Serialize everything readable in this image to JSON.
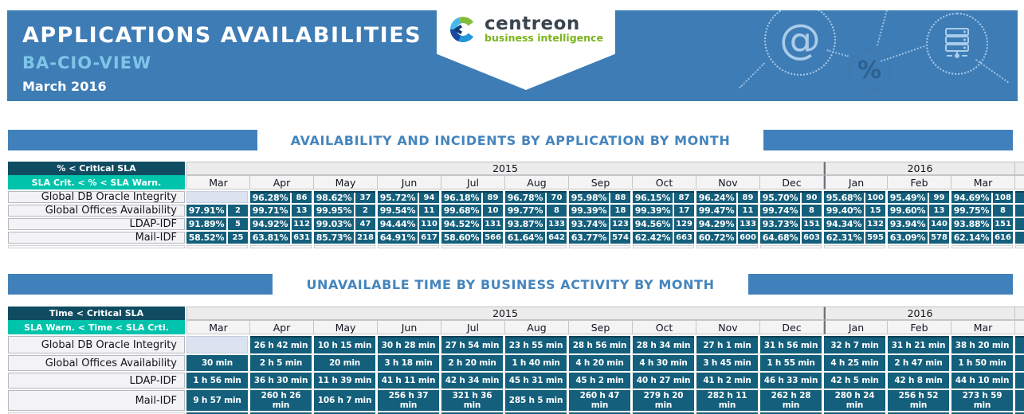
{
  "report": {
    "title": "APPLICATIONS AVAILABILITIES",
    "subtitle": "BA-CIO-VIEW",
    "period": "March 2016"
  },
  "logo": {
    "brand": "centreon",
    "tagline": "business intelligence"
  },
  "decor_icons": [
    {
      "name": "at-icon",
      "glyph": "@"
    },
    {
      "name": "percent-icon",
      "glyph": "%"
    },
    {
      "name": "server-icon",
      "glyph": ""
    }
  ],
  "months": [
    "Mar",
    "Apr",
    "May",
    "Jun",
    "Jul",
    "Aug",
    "Sep",
    "Oct",
    "Nov",
    "Dec",
    "Jan",
    "Feb",
    "Mar"
  ],
  "years": [
    {
      "label": "2015",
      "months": 10
    },
    {
      "label": "2016",
      "months": 3
    }
  ],
  "colors": {
    "banner_blue": "#3e7cb6",
    "section_bar_blue": "#4181bb",
    "title_blue": "#4585bd",
    "subtitle_light_blue": "#7ec5e8",
    "legend_dark_teal": "#0f4c61",
    "legend_turquoise": "#00c3ab",
    "data_cell_teal": "#145f7b",
    "empty_cell": "#dbe3f0",
    "logo_green": "#7ab51d"
  },
  "availability_table": {
    "title": "AVAILABILITY AND INCIDENTS BY APPLICATION BY MONTH",
    "legend_critical": "% < Critical SLA",
    "legend_warning": "SLA Crit. < % < SLA Warn.",
    "rows": [
      {
        "label": "Global DB Oracle Integrity",
        "cells": [
          null,
          [
            "96.28%",
            "86"
          ],
          [
            "98.62%",
            "37"
          ],
          [
            "95.72%",
            "94"
          ],
          [
            "96.18%",
            "89"
          ],
          [
            "96.78%",
            "70"
          ],
          [
            "95.98%",
            "88"
          ],
          [
            "96.15%",
            "87"
          ],
          [
            "96.24%",
            "89"
          ],
          [
            "95.70%",
            "90"
          ],
          [
            "95.68%",
            "100"
          ],
          [
            "95.49%",
            "99"
          ],
          [
            "94.69%",
            "108"
          ]
        ]
      },
      {
        "label": "Global Offices Availability",
        "cells": [
          [
            "97.91%",
            "2"
          ],
          [
            "99.71%",
            "13"
          ],
          [
            "99.95%",
            "2"
          ],
          [
            "99.54%",
            "11"
          ],
          [
            "99.68%",
            "10"
          ],
          [
            "99.77%",
            "8"
          ],
          [
            "99.39%",
            "18"
          ],
          [
            "99.39%",
            "17"
          ],
          [
            "99.47%",
            "11"
          ],
          [
            "99.74%",
            "8"
          ],
          [
            "99.40%",
            "15"
          ],
          [
            "99.60%",
            "13"
          ],
          [
            "99.75%",
            "8"
          ]
        ]
      },
      {
        "label": "LDAP-IDF",
        "cells": [
          [
            "91.89%",
            "5"
          ],
          [
            "94.92%",
            "112"
          ],
          [
            "99.03%",
            "47"
          ],
          [
            "94.44%",
            "110"
          ],
          [
            "94.52%",
            "131"
          ],
          [
            "93.87%",
            "133"
          ],
          [
            "93.74%",
            "123"
          ],
          [
            "94.56%",
            "129"
          ],
          [
            "94.29%",
            "133"
          ],
          [
            "93.73%",
            "151"
          ],
          [
            "94.34%",
            "132"
          ],
          [
            "93.94%",
            "140"
          ],
          [
            "93.88%",
            "151"
          ]
        ]
      },
      {
        "label": "Mail-IDF",
        "cells": [
          [
            "58.52%",
            "25"
          ],
          [
            "63.81%",
            "631"
          ],
          [
            "85.73%",
            "218"
          ],
          [
            "64.91%",
            "617"
          ],
          [
            "58.60%",
            "566"
          ],
          [
            "61.64%",
            "642"
          ],
          [
            "63.77%",
            "574"
          ],
          [
            "62.42%",
            "663"
          ],
          [
            "60.72%",
            "600"
          ],
          [
            "64.68%",
            "603"
          ],
          [
            "62.31%",
            "595"
          ],
          [
            "63.09%",
            "578"
          ],
          [
            "62.14%",
            "616"
          ]
        ]
      }
    ]
  },
  "unavailable_table": {
    "title": "UNAVAILABLE TIME BY BUSINESS ACTIVITY BY MONTH",
    "legend_critical": "Time < Critical SLA",
    "legend_warning": "SLA Warn. < Time < SLA Crti.",
    "rows": [
      {
        "label": "Global DB Oracle Integrity",
        "cells": [
          null,
          "26 h 42 min",
          "10 h 15 min",
          "30 h 28 min",
          "27 h 54 min",
          "23 h 55 min",
          "28 h 56 min",
          "28 h 34 min",
          "27 h 1 min",
          "31 h 56 min",
          "32 h 7 min",
          "31 h 21 min",
          "38 h 20 min"
        ]
      },
      {
        "label": "Global Offices Availability",
        "cells": [
          "30 min",
          "2 h 5 min",
          "20 min",
          "3 h 18 min",
          "2 h 20 min",
          "1 h 40 min",
          "4 h 20 min",
          "4 h 30 min",
          "3 h 45 min",
          "1 h 55 min",
          "4 h 25 min",
          "2 h 47 min",
          "1 h 50 min"
        ]
      },
      {
        "label": "LDAP-IDF",
        "cells": [
          "1 h 56 min",
          "36 h 30 min",
          "11 h 39 min",
          "41 h 11 min",
          "42 h 34 min",
          "45 h 31 min",
          "45 h 2 min",
          "40 h 27 min",
          "41 h 2 min",
          "46 h 33 min",
          "42 h 5 min",
          "42 h 8 min",
          "44 h 10 min"
        ]
      },
      {
        "label": "Mail-IDF",
        "cells": [
          "9 h 57 min",
          "260 h 26 min",
          "106 h 7 min",
          "256 h 37 min",
          "321 h 36 min",
          "285 h 5 min",
          "260 h 47 min",
          "279 h 20 min",
          "282 h 11 min",
          "262 h 28 min",
          "280 h 24 min",
          "256 h 52 min",
          "273 h 59 min"
        ]
      }
    ]
  }
}
